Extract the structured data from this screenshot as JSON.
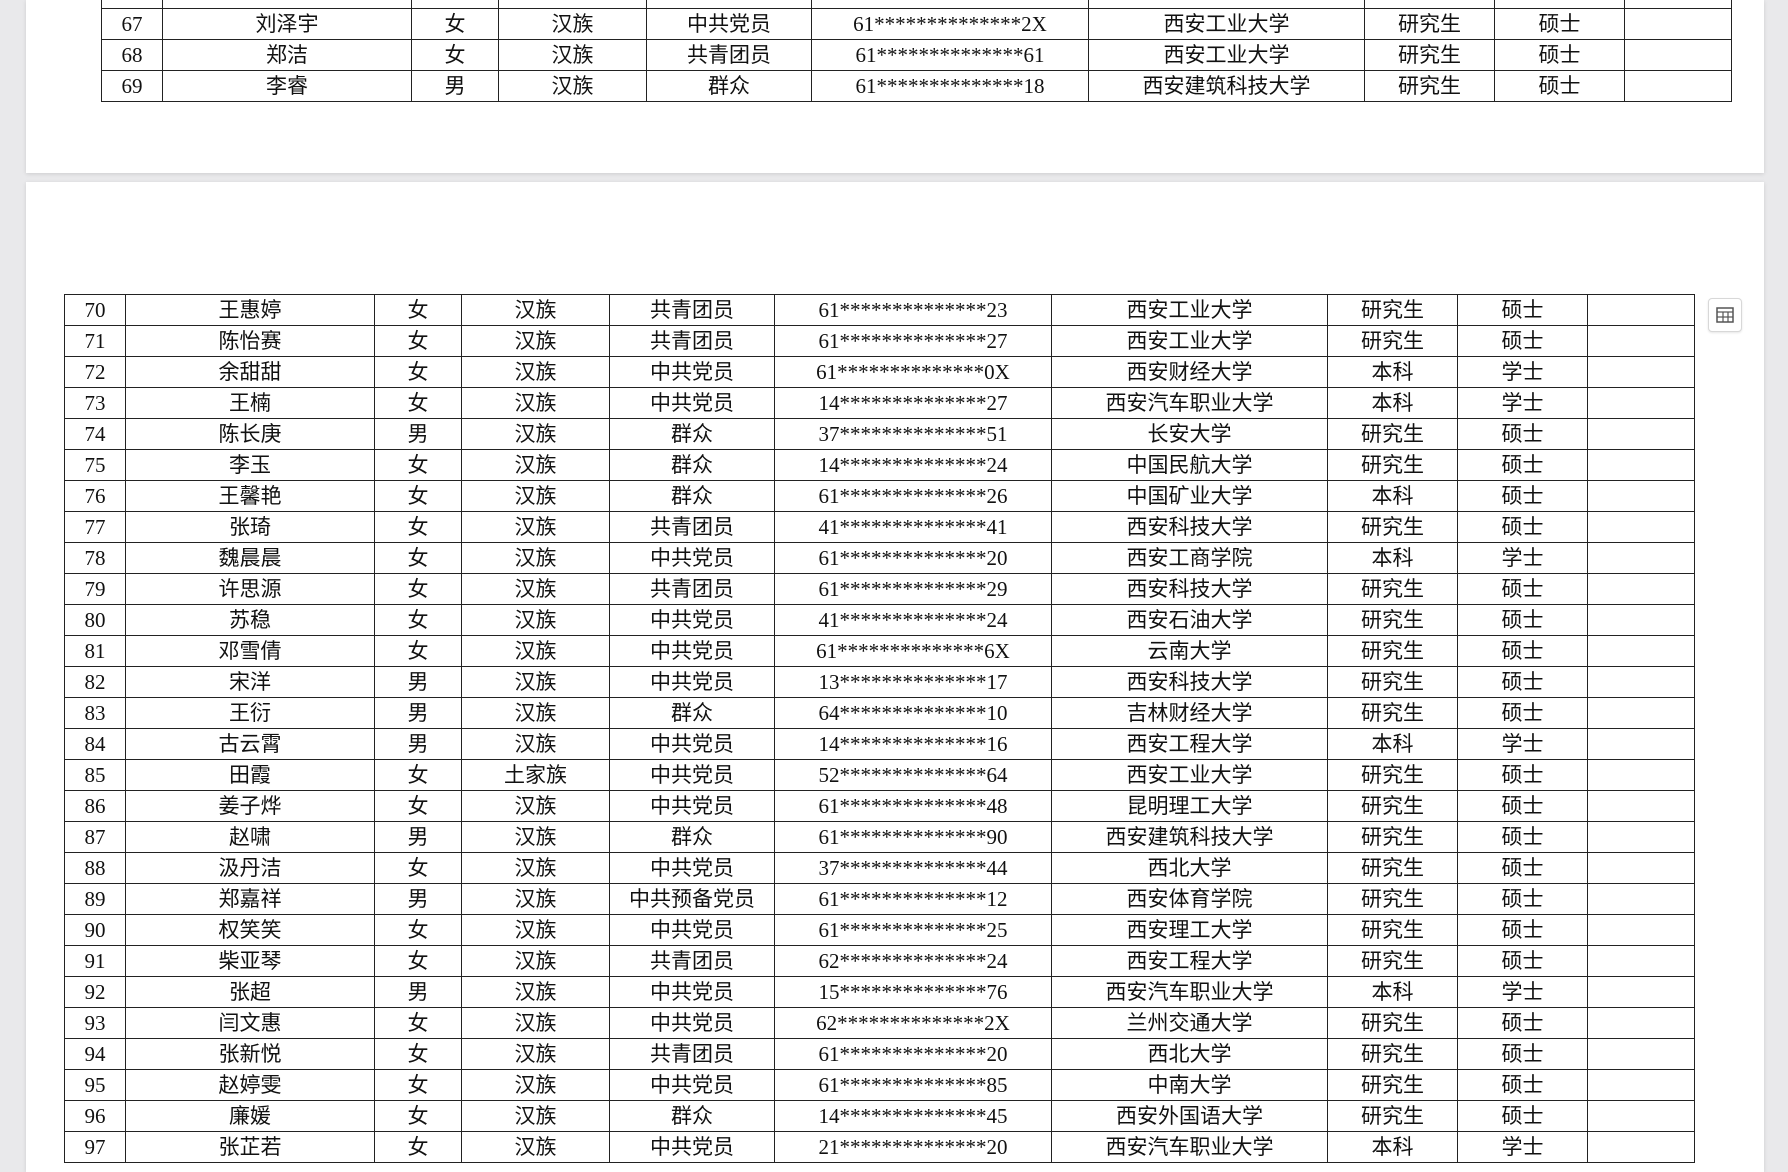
{
  "page1": {
    "rows": [
      [
        67,
        "刘泽宇",
        "女",
        "汉族",
        "中共党员",
        "61**************2X",
        "西安工业大学",
        "研究生",
        "硕士"
      ],
      [
        68,
        "郑洁",
        "女",
        "汉族",
        "共青团员",
        "61**************61",
        "西安工业大学",
        "研究生",
        "硕士"
      ],
      [
        69,
        "李睿",
        "男",
        "汉族",
        "群众",
        "61**************18",
        "西安建筑科技大学",
        "研究生",
        "硕士"
      ]
    ]
  },
  "page2": {
    "rows": [
      [
        70,
        "王惠婷",
        "女",
        "汉族",
        "共青团员",
        "61**************23",
        "西安工业大学",
        "研究生",
        "硕士"
      ],
      [
        71,
        "陈怡赛",
        "女",
        "汉族",
        "共青团员",
        "61**************27",
        "西安工业大学",
        "研究生",
        "硕士"
      ],
      [
        72,
        "余甜甜",
        "女",
        "汉族",
        "中共党员",
        "61**************0X",
        "西安财经大学",
        "本科",
        "学士"
      ],
      [
        73,
        "王楠",
        "女",
        "汉族",
        "中共党员",
        "14**************27",
        "西安汽车职业大学",
        "本科",
        "学士"
      ],
      [
        74,
        "陈长庚",
        "男",
        "汉族",
        "群众",
        "37**************51",
        "长安大学",
        "研究生",
        "硕士"
      ],
      [
        75,
        "李玉",
        "女",
        "汉族",
        "群众",
        "14**************24",
        "中国民航大学",
        "研究生",
        "硕士"
      ],
      [
        76,
        "王馨艳",
        "女",
        "汉族",
        "群众",
        "61**************26",
        "中国矿业大学",
        "本科",
        "硕士"
      ],
      [
        77,
        "张琦",
        "女",
        "汉族",
        "共青团员",
        "41**************41",
        "西安科技大学",
        "研究生",
        "硕士"
      ],
      [
        78,
        "魏晨晨",
        "女",
        "汉族",
        "中共党员",
        "61**************20",
        "西安工商学院",
        "本科",
        "学士"
      ],
      [
        79,
        "许思源",
        "女",
        "汉族",
        "共青团员",
        "61**************29",
        "西安科技大学",
        "研究生",
        "硕士"
      ],
      [
        80,
        "苏稳",
        "女",
        "汉族",
        "中共党员",
        "41**************24",
        "西安石油大学",
        "研究生",
        "硕士"
      ],
      [
        81,
        "邓雪倩",
        "女",
        "汉族",
        "中共党员",
        "61**************6X",
        "云南大学",
        "研究生",
        "硕士"
      ],
      [
        82,
        "宋洋",
        "男",
        "汉族",
        "中共党员",
        "13**************17",
        "西安科技大学",
        "研究生",
        "硕士"
      ],
      [
        83,
        "王衍",
        "男",
        "汉族",
        "群众",
        "64**************10",
        "吉林财经大学",
        "研究生",
        "硕士"
      ],
      [
        84,
        "古云霄",
        "男",
        "汉族",
        "中共党员",
        "14**************16",
        "西安工程大学",
        "本科",
        "学士"
      ],
      [
        85,
        "田霞",
        "女",
        "土家族",
        "中共党员",
        "52**************64",
        "西安工业大学",
        "研究生",
        "硕士"
      ],
      [
        86,
        "姜子烨",
        "女",
        "汉族",
        "中共党员",
        "61**************48",
        "昆明理工大学",
        "研究生",
        "硕士"
      ],
      [
        87,
        "赵啸",
        "男",
        "汉族",
        "群众",
        "61**************90",
        "西安建筑科技大学",
        "研究生",
        "硕士"
      ],
      [
        88,
        "汲丹洁",
        "女",
        "汉族",
        "中共党员",
        "37**************44",
        "西北大学",
        "研究生",
        "硕士"
      ],
      [
        89,
        "郑嘉祥",
        "男",
        "汉族",
        "中共预备党员",
        "61**************12",
        "西安体育学院",
        "研究生",
        "硕士"
      ],
      [
        90,
        "权笑笑",
        "女",
        "汉族",
        "中共党员",
        "61**************25",
        "西安理工大学",
        "研究生",
        "硕士"
      ],
      [
        91,
        "柴亚琴",
        "女",
        "汉族",
        "共青团员",
        "62**************24",
        "西安工程大学",
        "研究生",
        "硕士"
      ],
      [
        92,
        "张超",
        "男",
        "汉族",
        "中共党员",
        "15**************76",
        "西安汽车职业大学",
        "本科",
        "学士"
      ],
      [
        93,
        "闫文惠",
        "女",
        "汉族",
        "中共党员",
        "62**************2X",
        "兰州交通大学",
        "研究生",
        "硕士"
      ],
      [
        94,
        "张新悦",
        "女",
        "汉族",
        "共青团员",
        "61**************20",
        "西北大学",
        "研究生",
        "硕士"
      ],
      [
        95,
        "赵婷雯",
        "女",
        "汉族",
        "中共党员",
        "61**************85",
        "中南大学",
        "研究生",
        "硕士"
      ],
      [
        96,
        "廉媛",
        "女",
        "汉族",
        "群众",
        "14**************45",
        "西安外国语大学",
        "研究生",
        "硕士"
      ],
      [
        97,
        "张芷若",
        "女",
        "汉族",
        "中共党员",
        "21**************20",
        "西安汽车职业大学",
        "本科",
        "学士"
      ]
    ]
  }
}
